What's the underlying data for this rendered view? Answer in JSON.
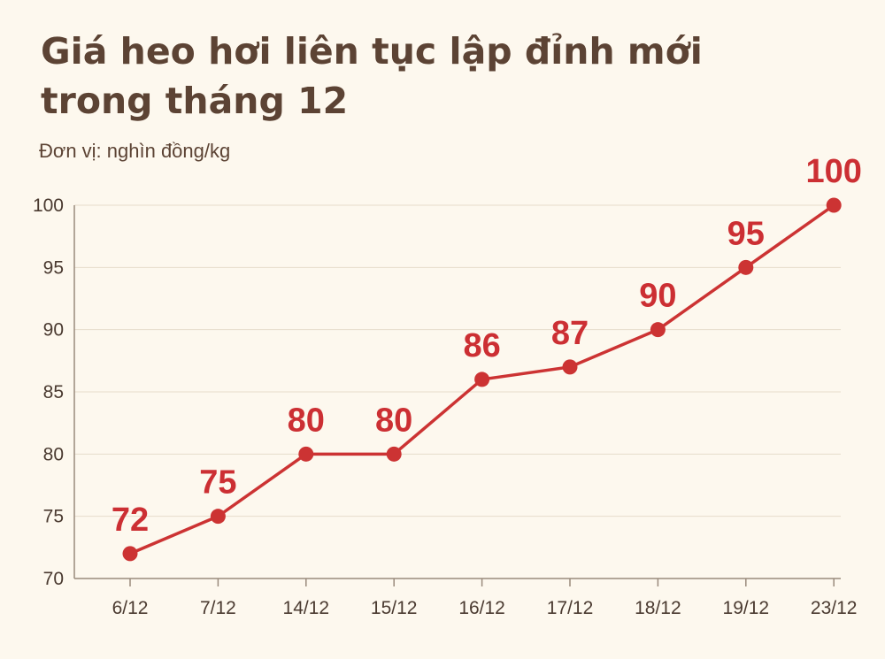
{
  "chart_data": {
    "type": "line",
    "title_lines": [
      "Giá heo hơi liên tục lập đỉnh mới",
      "trong tháng 12"
    ],
    "unit_label": "Đơn vị: nghìn đồng/kg",
    "categories": [
      "6/12",
      "7/12",
      "14/12",
      "15/12",
      "16/12",
      "17/12",
      "18/12",
      "19/12",
      "23/12"
    ],
    "series": [
      {
        "values": [
          72,
          75,
          80,
          80,
          86,
          87,
          90,
          95,
          100
        ]
      }
    ],
    "yticks": [
      70,
      75,
      80,
      85,
      90,
      95,
      100
    ],
    "ylim": [
      70,
      100
    ],
    "grid": true,
    "line_color": "#cc3333",
    "label_color": "#cc2f33"
  }
}
